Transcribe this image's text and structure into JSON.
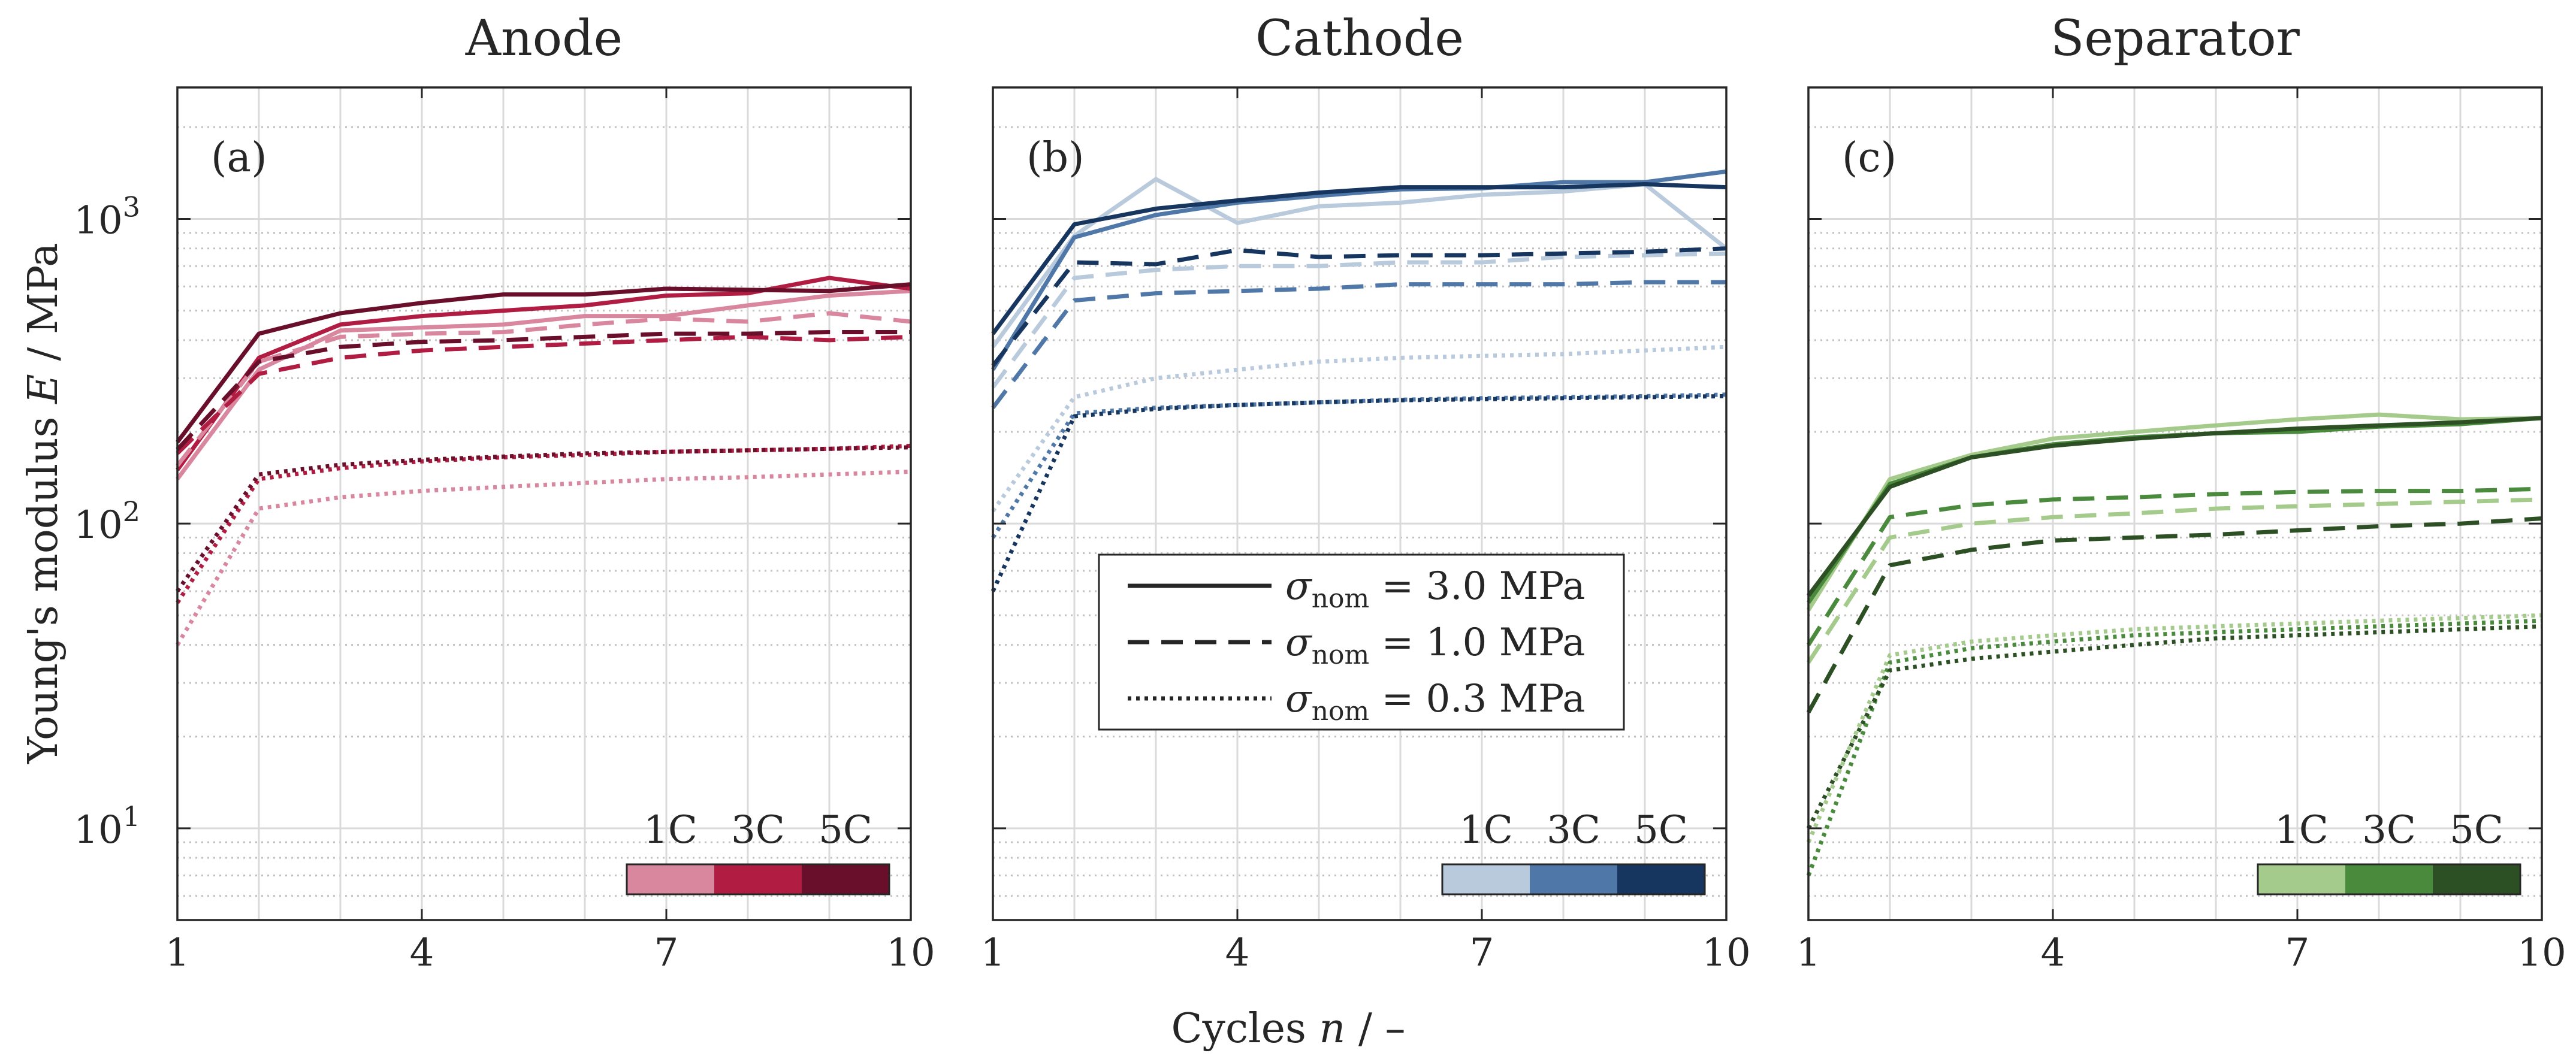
{
  "figure": {
    "ylabel_prefix": "Young's modulus ",
    "ylabel_var": "E",
    "ylabel_unit": " / MPa",
    "xlabel_prefix": "Cycles ",
    "xlabel_var": "n",
    "xlabel_unit": " / –",
    "legend": [
      {
        "style": "solid",
        "sigma": "σ",
        "sub": "nom",
        "value": " = 3.0 MPa"
      },
      {
        "style": "dashed",
        "sigma": "σ",
        "sub": "nom",
        "value": " = 1.0 MPa"
      },
      {
        "style": "dotted",
        "sigma": "σ",
        "sub": "nom",
        "value": " = 0.3 MPa"
      }
    ],
    "c_rate_labels": [
      "1C",
      "3C",
      "5C"
    ]
  },
  "chart_data": [
    {
      "type": "line",
      "title": "Anode",
      "panel_label": "(a)",
      "x": [
        1,
        2,
        3,
        4,
        5,
        6,
        7,
        8,
        9,
        10
      ],
      "xlim": [
        1,
        10
      ],
      "xticks": [
        1,
        4,
        7,
        10
      ],
      "yscale": "log",
      "ylim": [
        5,
        2700
      ],
      "yticks": [
        10,
        100,
        1000
      ],
      "ytick_labels": [
        {
          "base": "10",
          "exp": "1"
        },
        {
          "base": "10",
          "exp": "2"
        },
        {
          "base": "10",
          "exp": "3"
        }
      ],
      "colors": {
        "1C": "#d9879e",
        "3C": "#b01c42",
        "5C": "#6a0f2b"
      },
      "series": [
        {
          "name": "1C, 3.0 MPa",
          "rate": "1C",
          "stress": "3.0",
          "values": [
            140,
            320,
            430,
            440,
            450,
            480,
            480,
            520,
            560,
            580
          ]
        },
        {
          "name": "3C, 3.0 MPa",
          "rate": "3C",
          "stress": "3.0",
          "values": [
            150,
            350,
            450,
            480,
            500,
            520,
            560,
            570,
            640,
            590
          ]
        },
        {
          "name": "5C, 3.0 MPa",
          "rate": "5C",
          "stress": "3.0",
          "values": [
            185,
            420,
            490,
            530,
            565,
            565,
            590,
            585,
            580,
            610
          ]
        },
        {
          "name": "1C, 1.0 MPa",
          "rate": "1C",
          "stress": "1.0",
          "values": [
            155,
            340,
            410,
            420,
            425,
            450,
            470,
            460,
            490,
            460
          ]
        },
        {
          "name": "3C, 1.0 MPa",
          "rate": "3C",
          "stress": "1.0",
          "values": [
            170,
            310,
            350,
            370,
            380,
            390,
            400,
            410,
            400,
            410
          ]
        },
        {
          "name": "5C, 1.0 MPa",
          "rate": "5C",
          "stress": "1.0",
          "values": [
            175,
            340,
            380,
            395,
            400,
            410,
            420,
            420,
            425,
            425
          ]
        },
        {
          "name": "1C, 0.3 MPa",
          "rate": "1C",
          "stress": "0.3",
          "values": [
            40,
            112,
            122,
            128,
            132,
            136,
            140,
            142,
            145,
            148
          ]
        },
        {
          "name": "3C, 0.3 MPa",
          "rate": "3C",
          "stress": "0.3",
          "values": [
            55,
            140,
            152,
            160,
            165,
            168,
            172,
            174,
            176,
            180
          ]
        },
        {
          "name": "5C, 0.3 MPa",
          "rate": "5C",
          "stress": "0.3",
          "values": [
            60,
            145,
            156,
            162,
            166,
            170,
            172,
            174,
            176,
            178
          ]
        }
      ]
    },
    {
      "type": "line",
      "title": "Cathode",
      "panel_label": "(b)",
      "x": [
        1,
        2,
        3,
        4,
        5,
        6,
        7,
        8,
        9,
        10
      ],
      "xlim": [
        1,
        10
      ],
      "xticks": [
        1,
        4,
        7,
        10
      ],
      "yscale": "log",
      "ylim": [
        5,
        2700
      ],
      "yticks": [
        10,
        100,
        1000
      ],
      "ytick_labels": [
        {
          "base": "10",
          "exp": "1"
        },
        {
          "base": "10",
          "exp": "2"
        },
        {
          "base": "10",
          "exp": "3"
        }
      ],
      "colors": {
        "1C": "#b8cadc",
        "3C": "#4f78a8",
        "5C": "#17365f"
      },
      "series": [
        {
          "name": "1C, 3.0 MPa",
          "rate": "1C",
          "stress": "3.0",
          "values": [
            380,
            880,
            1350,
            970,
            1100,
            1130,
            1200,
            1230,
            1300,
            800
          ]
        },
        {
          "name": "3C, 3.0 MPa",
          "rate": "3C",
          "stress": "3.0",
          "values": [
            320,
            870,
            1030,
            1130,
            1190,
            1250,
            1260,
            1320,
            1320,
            1430
          ]
        },
        {
          "name": "5C, 3.0 MPa",
          "rate": "5C",
          "stress": "3.0",
          "values": [
            420,
            960,
            1080,
            1150,
            1220,
            1270,
            1270,
            1270,
            1300,
            1270
          ]
        },
        {
          "name": "1C, 1.0 MPa",
          "rate": "1C",
          "stress": "1.0",
          "values": [
            280,
            640,
            680,
            700,
            700,
            720,
            720,
            750,
            760,
            770
          ]
        },
        {
          "name": "3C, 1.0 MPa",
          "rate": "3C",
          "stress": "1.0",
          "values": [
            240,
            540,
            570,
            580,
            590,
            610,
            610,
            610,
            620,
            620
          ]
        },
        {
          "name": "5C, 1.0 MPa",
          "rate": "5C",
          "stress": "1.0",
          "values": [
            330,
            720,
            710,
            790,
            750,
            760,
            760,
            770,
            780,
            800
          ]
        },
        {
          "name": "1C, 0.3 MPa",
          "rate": "1C",
          "stress": "0.3",
          "values": [
            110,
            260,
            300,
            320,
            340,
            350,
            355,
            360,
            370,
            380
          ]
        },
        {
          "name": "3C, 0.3 MPa",
          "rate": "3C",
          "stress": "0.3",
          "values": [
            90,
            230,
            240,
            245,
            250,
            255,
            258,
            260,
            262,
            265
          ]
        },
        {
          "name": "5C, 0.3 MPa",
          "rate": "5C",
          "stress": "0.3",
          "values": [
            60,
            225,
            238,
            245,
            250,
            254,
            256,
            258,
            260,
            262
          ]
        }
      ]
    },
    {
      "type": "line",
      "title": "Separator",
      "panel_label": "(c)",
      "x": [
        1,
        2,
        3,
        4,
        5,
        6,
        7,
        8,
        9,
        10
      ],
      "xlim": [
        1,
        10
      ],
      "xticks": [
        1,
        4,
        7,
        10
      ],
      "yscale": "log",
      "ylim": [
        5,
        2700
      ],
      "yticks": [
        10,
        100,
        1000
      ],
      "ytick_labels": [
        {
          "base": "10",
          "exp": "1"
        },
        {
          "base": "10",
          "exp": "2"
        },
        {
          "base": "10",
          "exp": "3"
        }
      ],
      "colors": {
        "1C": "#a4cb8c",
        "3C": "#4a8a3c",
        "5C": "#2d4f24"
      },
      "series": [
        {
          "name": "1C, 3.0 MPa",
          "rate": "1C",
          "stress": "3.0",
          "values": [
            52,
            140,
            168,
            190,
            200,
            210,
            220,
            228,
            220,
            222
          ]
        },
        {
          "name": "3C, 3.0 MPa",
          "rate": "3C",
          "stress": "3.0",
          "values": [
            55,
            135,
            165,
            182,
            192,
            198,
            200,
            208,
            212,
            222
          ]
        },
        {
          "name": "5C, 3.0 MPa",
          "rate": "5C",
          "stress": "3.0",
          "values": [
            58,
            132,
            165,
            180,
            190,
            198,
            205,
            210,
            215,
            222
          ]
        },
        {
          "name": "1C, 1.0 MPa",
          "rate": "1C",
          "stress": "1.0",
          "values": [
            35,
            90,
            100,
            105,
            108,
            112,
            114,
            116,
            118,
            120
          ]
        },
        {
          "name": "3C, 1.0 MPa",
          "rate": "3C",
          "stress": "1.0",
          "values": [
            40,
            105,
            115,
            120,
            122,
            125,
            127,
            128,
            128,
            130
          ]
        },
        {
          "name": "5C, 1.0 MPa",
          "rate": "5C",
          "stress": "1.0",
          "values": [
            24,
            73,
            82,
            88,
            90,
            92,
            95,
            98,
            100,
            104
          ]
        },
        {
          "name": "1C, 0.3 MPa",
          "rate": "1C",
          "stress": "0.3",
          "values": [
            9,
            37,
            41,
            43,
            45,
            46,
            47,
            48,
            49,
            50
          ]
        },
        {
          "name": "3C, 0.3 MPa",
          "rate": "3C",
          "stress": "0.3",
          "values": [
            7,
            35,
            39,
            41,
            43,
            44,
            45,
            46,
            47,
            48
          ]
        },
        {
          "name": "5C, 0.3 MPa",
          "rate": "5C",
          "stress": "0.3",
          "values": [
            10,
            33,
            36,
            38,
            40,
            42,
            43,
            44,
            45,
            46
          ]
        }
      ]
    }
  ]
}
